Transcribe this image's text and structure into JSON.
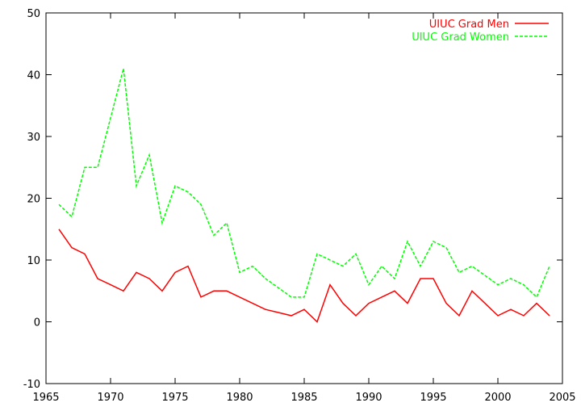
{
  "chart_data": {
    "type": "line",
    "title": "",
    "xlabel": "",
    "ylabel": "",
    "xlim": [
      1965,
      2005
    ],
    "ylim": [
      -10,
      50
    ],
    "xticks": [
      1965,
      1970,
      1975,
      1980,
      1985,
      1990,
      1995,
      2000,
      2005
    ],
    "yticks": [
      -10,
      0,
      10,
      20,
      30,
      40,
      50
    ],
    "grid": false,
    "legend_position": "top-right",
    "x": [
      1966,
      1967,
      1968,
      1969,
      1970,
      1971,
      1972,
      1973,
      1974,
      1975,
      1976,
      1977,
      1978,
      1979,
      1980,
      1981,
      1982,
      1983,
      1984,
      1985,
      1986,
      1987,
      1988,
      1989,
      1990,
      1991,
      1992,
      1993,
      1994,
      1995,
      1996,
      1997,
      1998,
      1999,
      2000,
      2001,
      2002,
      2003,
      2004
    ],
    "series": [
      {
        "name": "UIUC Grad Men",
        "color": "#ff0000",
        "dash": "solid",
        "values": [
          15,
          12,
          11,
          7,
          6,
          5,
          8,
          7,
          5,
          8,
          9,
          4,
          5,
          5,
          4,
          3,
          2,
          1.5,
          1,
          2,
          0,
          6,
          3,
          1,
          3,
          4,
          5,
          3,
          7,
          7,
          3,
          1,
          5,
          3,
          1,
          2,
          1,
          3,
          1
        ]
      },
      {
        "name": "UIUC Grad Women",
        "color": "#00ff00",
        "dash": "dashed",
        "values": [
          19,
          17,
          25,
          25,
          33,
          41,
          22,
          27,
          16,
          22,
          21,
          19,
          14,
          16,
          8,
          9,
          7,
          5.5,
          4,
          4,
          11,
          10,
          9,
          11,
          6,
          9,
          7,
          13,
          9,
          13,
          12,
          8,
          9,
          7.5,
          6,
          7,
          6,
          4,
          9
        ]
      }
    ]
  }
}
